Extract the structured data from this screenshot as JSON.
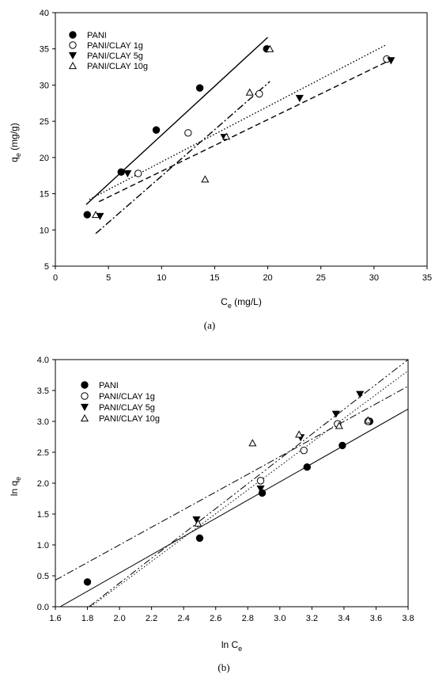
{
  "chart_data": [
    {
      "type": "scatter",
      "panel_label": "(a)",
      "ylabel_main": "q",
      "ylabel_sub": "e",
      "ylabel_unit": " (mg/g)",
      "xlabel_main": "C",
      "xlabel_sub": "e",
      "xlabel_unit": " (mg/L)",
      "xlim": [
        0,
        35
      ],
      "ylim": [
        5,
        40
      ],
      "xticks": [
        0,
        5,
        10,
        15,
        20,
        25,
        30,
        35
      ],
      "yticks": [
        5,
        10,
        15,
        20,
        25,
        30,
        35,
        40
      ],
      "grid": false,
      "legend_position": "top-left",
      "series": [
        {
          "name": "PANI",
          "marker": "circle-filled",
          "line": "solid",
          "x": [
            3.0,
            6.2,
            9.5,
            13.6,
            19.9
          ],
          "y": [
            12.1,
            18.0,
            23.8,
            29.6,
            35.0
          ],
          "fit": [
            [
              2.9,
              13.5
            ],
            [
              20.0,
              36.6
            ]
          ]
        },
        {
          "name": "PANI/CLAY 1g",
          "marker": "circle-open",
          "line": "dotted",
          "x": [
            7.8,
            12.5,
            19.2,
            31.2
          ],
          "y": [
            17.8,
            23.4,
            28.8,
            33.6
          ],
          "fit": [
            [
              3.2,
              14.2
            ],
            [
              31.2,
              35.6
            ]
          ]
        },
        {
          "name": "PANI/CLAY 5g",
          "marker": "triangle-down-filled",
          "line": "dashed",
          "x": [
            4.2,
            6.8,
            15.9,
            23.0,
            31.6
          ],
          "y": [
            11.9,
            17.8,
            22.8,
            28.2,
            33.4
          ],
          "fit": [
            [
              4.1,
              13.9
            ],
            [
              31.6,
              33.5
            ]
          ]
        },
        {
          "name": "PANI/CLAY 10g",
          "marker": "triangle-up-open",
          "line": "dashdot",
          "x": [
            3.8,
            14.1,
            16.1,
            18.3,
            20.2
          ],
          "y": [
            12.1,
            17.0,
            22.9,
            29.0,
            35.0
          ],
          "fit": [
            [
              3.8,
              9.5
            ],
            [
              20.2,
              30.5
            ]
          ]
        }
      ]
    },
    {
      "type": "scatter",
      "panel_label": "(b)",
      "ylabel_main": "ln q",
      "ylabel_sub": "e",
      "ylabel_unit": "",
      "xlabel_main": "ln C",
      "xlabel_sub": "e",
      "xlabel_unit": "",
      "xlim": [
        1.6,
        3.8
      ],
      "ylim": [
        0.0,
        4.0
      ],
      "xticks": [
        "1.6",
        "1.8",
        "2.0",
        "2.2",
        "2.4",
        "2.6",
        "2.8",
        "3.0",
        "3.2",
        "3.4",
        "3.6",
        "3.8"
      ],
      "yticks": [
        "0.0",
        "0.5",
        "1.0",
        "1.5",
        "2.0",
        "2.5",
        "3.0",
        "3.5",
        "4.0"
      ],
      "grid": false,
      "legend_position": "top-left",
      "series": [
        {
          "name": "PANI",
          "marker": "circle-filled",
          "line": "solid",
          "x": [
            1.8,
            2.5,
            2.89,
            3.17,
            3.39,
            3.56
          ],
          "y": [
            0.4,
            1.11,
            1.84,
            2.26,
            2.61,
            3.0
          ],
          "fit": [
            [
              1.63,
              0.0
            ],
            [
              3.8,
              3.2
            ]
          ]
        },
        {
          "name": "PANI/CLAY 1g",
          "marker": "circle-open",
          "line": "dotted",
          "x": [
            2.88,
            3.15,
            3.36,
            3.55
          ],
          "y": [
            2.04,
            2.53,
            2.96,
            3.0
          ],
          "fit": [
            [
              1.82,
              0.0
            ],
            [
              3.8,
              3.82
            ]
          ]
        },
        {
          "name": "PANI/CLAY 5g",
          "marker": "triangle-down-filled",
          "line": "dashdot",
          "x": [
            2.48,
            2.88,
            3.13,
            3.35,
            3.5
          ],
          "y": [
            1.41,
            1.91,
            2.74,
            3.12,
            3.44
          ],
          "fit": [
            [
              1.6,
              0.43
            ],
            [
              3.8,
              3.57
            ]
          ]
        },
        {
          "name": "PANI/CLAY 10g",
          "marker": "triangle-up-open",
          "line": "dashdotdot",
          "x": [
            2.49,
            2.83,
            3.12,
            3.37,
            3.55
          ],
          "y": [
            1.35,
            2.65,
            2.79,
            2.93,
            3.02
          ],
          "fit": [
            [
              1.81,
              0.0
            ],
            [
              3.8,
              4.0
            ]
          ]
        }
      ]
    }
  ]
}
